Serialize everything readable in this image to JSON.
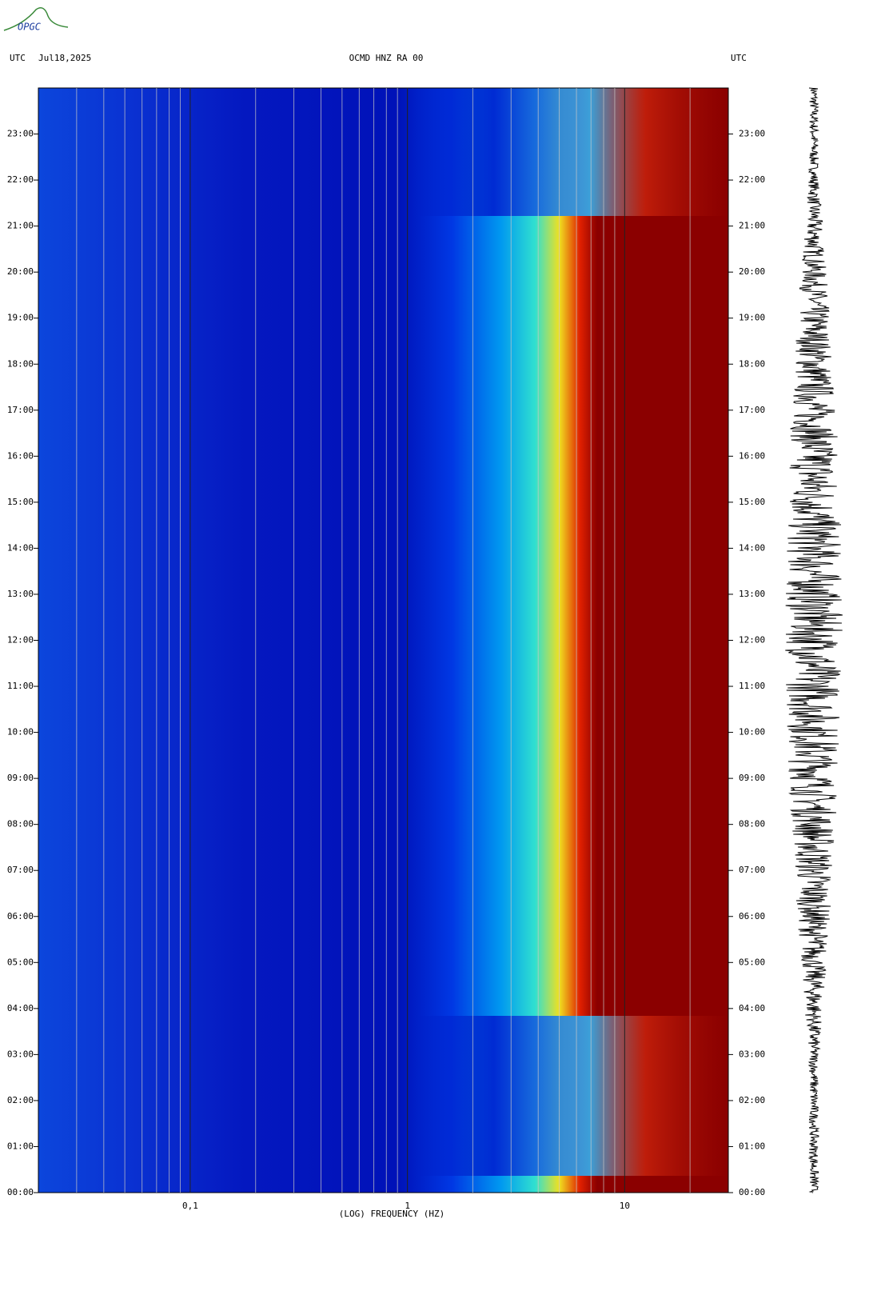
{
  "logo": "OPGC",
  "chart_data": {
    "type": "spectrogram",
    "header_left": "UTC",
    "date": "Jul18,2025",
    "title": "OCMD HNZ RA 00",
    "header_right": "UTC",
    "xlabel": "(LOG) FREQUENCY (HZ)",
    "xscale": "log",
    "xlim": [
      0.02,
      30
    ],
    "xticks": [
      {
        "value": 0.1,
        "label": "0,1"
      },
      1,
      10
    ],
    "xminorticks": [
      0.03,
      0.04,
      0.05,
      0.06,
      0.07,
      0.08,
      0.09,
      0.2,
      0.3,
      0.4,
      0.5,
      0.6,
      0.7,
      0.8,
      0.9,
      2,
      3,
      4,
      5,
      6,
      7,
      8,
      9,
      20
    ],
    "ylim": [
      0,
      24
    ],
    "yticks": [
      {
        "value": 0,
        "label": "00:00"
      },
      {
        "value": 1,
        "label": "01:00"
      },
      {
        "value": 2,
        "label": "02:00"
      },
      {
        "value": 3,
        "label": "03:00"
      },
      {
        "value": 4,
        "label": "04:00"
      },
      {
        "value": 5,
        "label": "05:00"
      },
      {
        "value": 6,
        "label": "06:00"
      },
      {
        "value": 7,
        "label": "07:00"
      },
      {
        "value": 8,
        "label": "08:00"
      },
      {
        "value": 9,
        "label": "09:00"
      },
      {
        "value": 10,
        "label": "10:00"
      },
      {
        "value": 11,
        "label": "11:00"
      },
      {
        "value": 12,
        "label": "12:00"
      },
      {
        "value": 13,
        "label": "13:00"
      },
      {
        "value": 14,
        "label": "14:00"
      },
      {
        "value": 15,
        "label": "15:00"
      },
      {
        "value": 16,
        "label": "16:00"
      },
      {
        "value": 17,
        "label": "17:00"
      },
      {
        "value": 18,
        "label": "18:00"
      },
      {
        "value": 19,
        "label": "19:00"
      },
      {
        "value": 20,
        "label": "20:00"
      },
      {
        "value": 21,
        "label": "21:00"
      },
      {
        "value": 22,
        "label": "22:00"
      },
      {
        "value": 23,
        "label": "23:00"
      }
    ]
  }
}
